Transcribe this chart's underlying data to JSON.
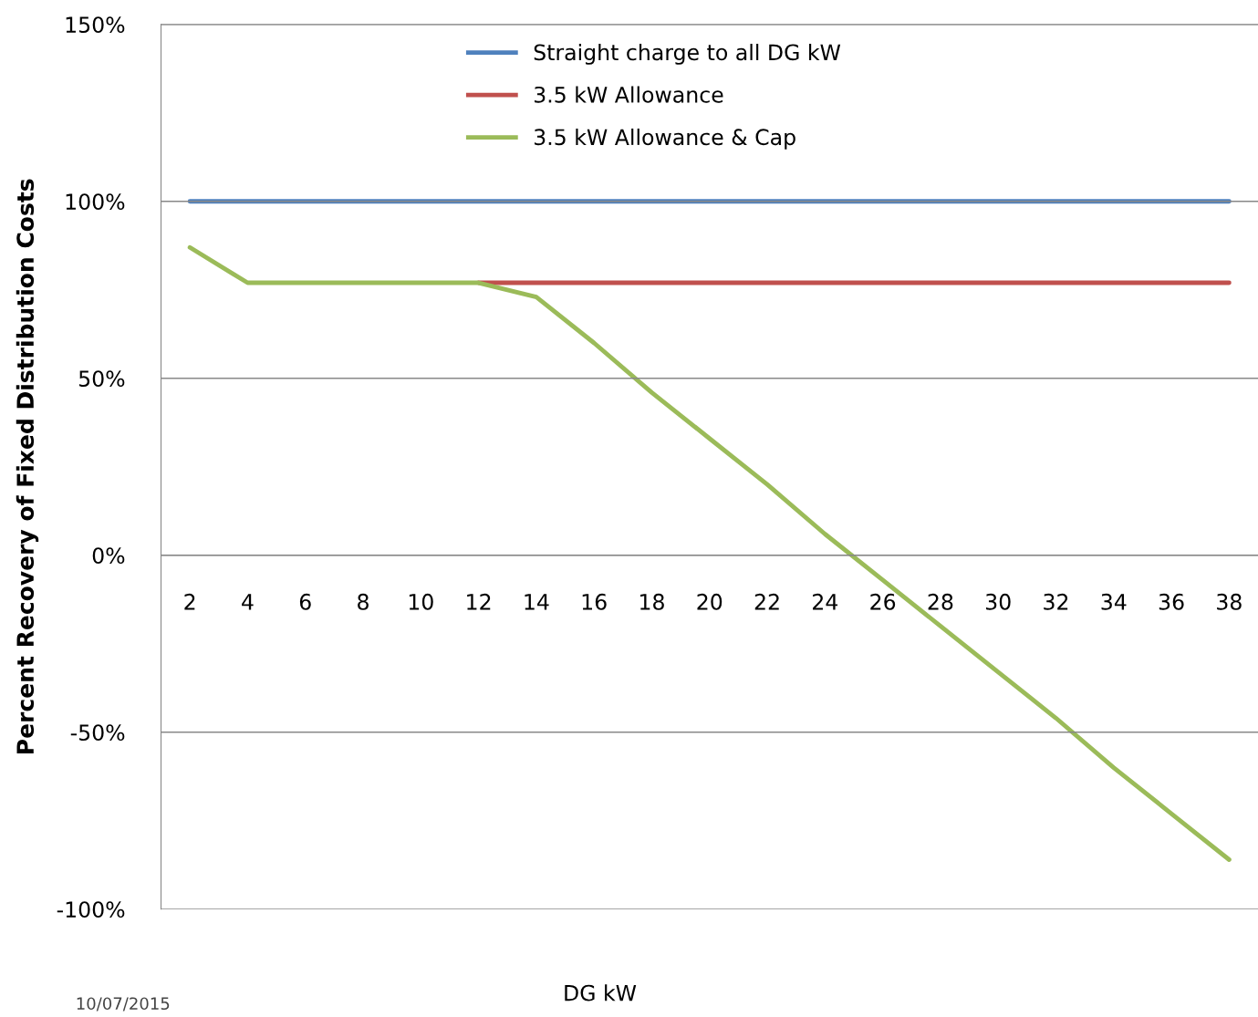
{
  "chart_data": {
    "type": "line",
    "xlabel": "DG kW",
    "ylabel": "Percent Recovery of Fixed Distribution Costs",
    "categories": [
      "2",
      "4",
      "6",
      "8",
      "10",
      "12",
      "14",
      "16",
      "18",
      "20",
      "22",
      "24",
      "26",
      "28",
      "30",
      "32",
      "34",
      "36",
      "38"
    ],
    "series": [
      {
        "name": "Straight charge to all DG kW",
        "color": "#4f81bd",
        "values": [
          100,
          100,
          100,
          100,
          100,
          100,
          100,
          100,
          100,
          100,
          100,
          100,
          100,
          100,
          100,
          100,
          100,
          100,
          100
        ]
      },
      {
        "name": "3.5 kW Allowance",
        "color": "#c0504d",
        "values": [
          null,
          null,
          null,
          null,
          null,
          77,
          77,
          77,
          77,
          77,
          77,
          77,
          77,
          77,
          77,
          77,
          77,
          77,
          77
        ]
      },
      {
        "name": "3.5 kW Allowance & Cap",
        "color": "#9bbb59",
        "values": [
          87,
          77,
          77,
          77,
          77,
          77,
          73,
          60,
          46,
          33,
          20,
          6,
          -7,
          -20,
          -33,
          -46,
          -60,
          -73,
          -86
        ]
      }
    ],
    "ylim": [
      -100,
      150
    ],
    "yticks": [
      {
        "value": -100,
        "label": "-100%"
      },
      {
        "value": -50,
        "label": "-50%"
      },
      {
        "value": 0,
        "label": "0%"
      },
      {
        "value": 50,
        "label": "50%"
      },
      {
        "value": 100,
        "label": "100%"
      },
      {
        "value": 150,
        "label": "150%"
      }
    ],
    "grid": "y",
    "legend": "top",
    "marker": "none",
    "line_style": "solid",
    "annotations": [
      "10/07/2015"
    ]
  }
}
